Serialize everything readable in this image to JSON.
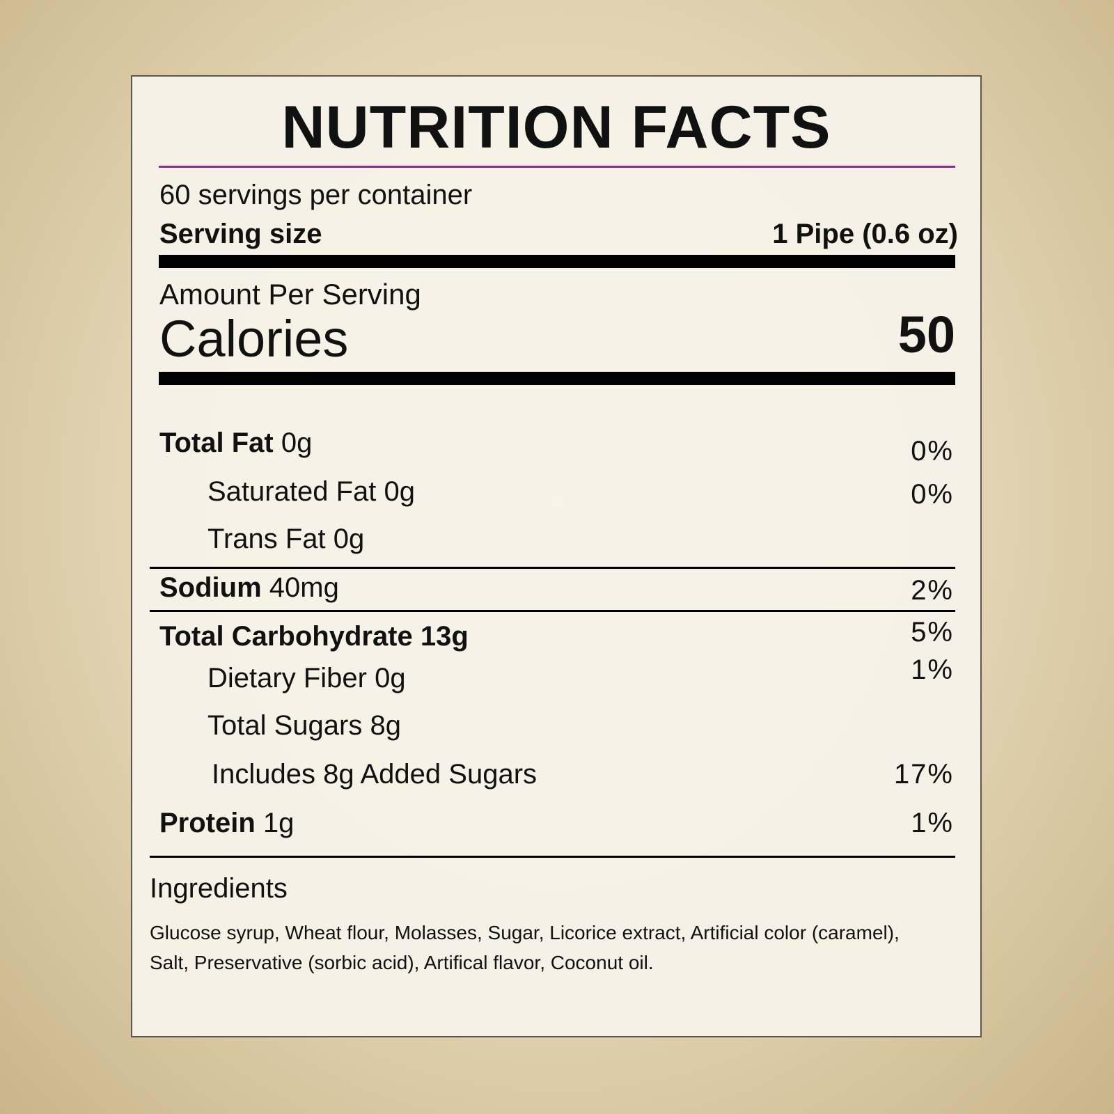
{
  "label": {
    "title": "NUTRITION FACTS",
    "servings": "60 servings per container",
    "serving_size_label": "Serving size",
    "serving_size_value": "1 Pipe (0.6 oz)",
    "amount_per_serving": "Amount Per Serving",
    "calories_label": "Calories",
    "calories_value": "50",
    "rows": [
      {
        "label": "Total Fat",
        "amount": "0g",
        "dv": "0%"
      },
      {
        "label": "Saturated Fat",
        "amount": "0g",
        "dv": "0%"
      },
      {
        "label": "Trans Fat",
        "amount": "0g"
      },
      {
        "label": "Sodium",
        "amount": "40mg",
        "dv": "2%"
      },
      {
        "label": "Total Carbohydrate",
        "amount": "13g",
        "dv": "5%"
      },
      {
        "label": "Dietary Fiber",
        "amount": "0g",
        "dv": "1%"
      },
      {
        "label": "Total Sugars",
        "amount": "8g"
      },
      {
        "label": "Includes 8g Added Sugars",
        "dv": "17%"
      },
      {
        "label": "Protein",
        "amount": "1g",
        "dv": "1%"
      }
    ],
    "ingredients_title": "Ingredients",
    "ingredients": "Glucose syrup, Wheat flour, Molasses, Sugar, Licorice extract, Artificial color (caramel), Salt, Preservative (sorbic acid), Artifical flavor, Coconut oil."
  }
}
